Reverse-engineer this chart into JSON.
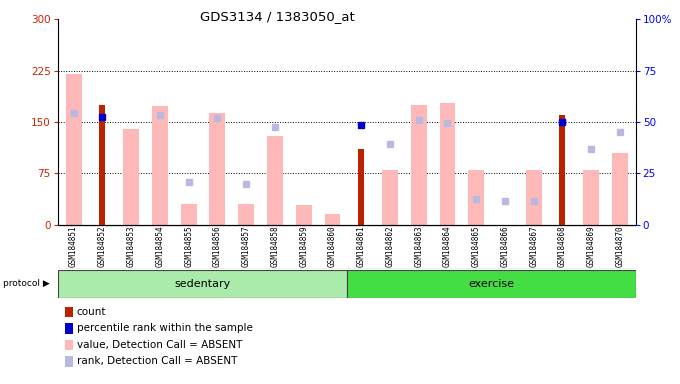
{
  "title": "GDS3134 / 1383050_at",
  "samples": [
    "GSM184851",
    "GSM184852",
    "GSM184853",
    "GSM184854",
    "GSM184855",
    "GSM184856",
    "GSM184857",
    "GSM184858",
    "GSM184859",
    "GSM184860",
    "GSM184861",
    "GSM184862",
    "GSM184863",
    "GSM184864",
    "GSM184865",
    "GSM184866",
    "GSM184867",
    "GSM184868",
    "GSM184869",
    "GSM184870"
  ],
  "count_values": [
    null,
    175,
    null,
    null,
    null,
    null,
    null,
    null,
    null,
    null,
    110,
    null,
    null,
    null,
    null,
    null,
    null,
    160,
    null,
    null
  ],
  "percentile_values": [
    null,
    157,
    null,
    null,
    null,
    null,
    null,
    null,
    null,
    null,
    145,
    null,
    null,
    null,
    null,
    null,
    null,
    150,
    null,
    null
  ],
  "absent_value_bars": [
    220,
    null,
    140,
    173,
    30,
    163,
    30,
    130,
    28,
    15,
    null,
    80,
    175,
    178,
    80,
    null,
    80,
    null,
    80,
    105
  ],
  "absent_rank_bars": [
    163,
    null,
    null,
    160,
    62,
    155,
    60,
    142,
    null,
    null,
    null,
    118,
    153,
    148,
    38,
    35,
    35,
    152,
    110,
    135
  ],
  "sedentary_count": 10,
  "exercise_count": 10,
  "ylim_left": [
    0,
    300
  ],
  "ylim_right": [
    0,
    100
  ],
  "yticks_left": [
    0,
    75,
    150,
    225,
    300
  ],
  "yticks_right": [
    0,
    25,
    50,
    75,
    100
  ],
  "grid_values": [
    75,
    150,
    225
  ],
  "color_count": "#bb2200",
  "color_percentile": "#0000cc",
  "color_absent_value": "#ffb8b8",
  "color_absent_rank": "#b8b8e0",
  "color_sedentary": "#aaeaaa",
  "color_exercise": "#44dd44",
  "color_gray_labels": "#cccccc",
  "bar_width": 0.55
}
